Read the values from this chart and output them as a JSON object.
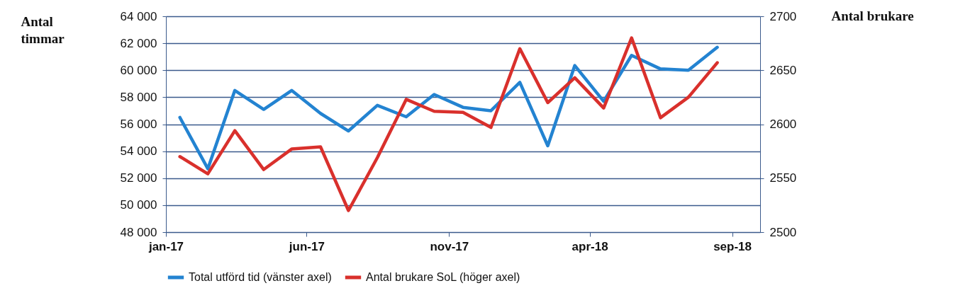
{
  "chart_data": {
    "type": "line",
    "ylabel": "Antal timmar",
    "y2label": "Antal brukare",
    "x": [
      "2017-01-16",
      "2017-02-15",
      "2017-03-16",
      "2017-04-16",
      "2017-05-16",
      "2017-06-16",
      "2017-07-16",
      "2017-08-16",
      "2017-09-16",
      "2017-10-16",
      "2017-11-16",
      "2017-12-16",
      "2018-01-16",
      "2018-02-15",
      "2018-03-16",
      "2018-04-16",
      "2018-05-16",
      "2018-06-16",
      "2018-07-16",
      "2018-08-16"
    ],
    "xlim": [
      "2017-01-01",
      "2018-10-01"
    ],
    "xticks": [
      {
        "value": "2017-01-01",
        "label": "jan-17"
      },
      {
        "value": "2017-06-01",
        "label": "jun-17"
      },
      {
        "value": "2017-11-01",
        "label": "nov-17"
      },
      {
        "value": "2018-04-01",
        "label": "apr-18"
      },
      {
        "value": "2018-09-01",
        "label": "sep-18"
      }
    ],
    "ylim": [
      48000,
      64000
    ],
    "yticks": [
      {
        "value": 48000,
        "label": "48 000"
      },
      {
        "value": 50000,
        "label": "50 000"
      },
      {
        "value": 52000,
        "label": "52 000"
      },
      {
        "value": 54000,
        "label": "54 000"
      },
      {
        "value": 56000,
        "label": "56 000"
      },
      {
        "value": 58000,
        "label": "58 000"
      },
      {
        "value": 60000,
        "label": "60 000"
      },
      {
        "value": 62000,
        "label": "62 000"
      },
      {
        "value": 64000,
        "label": "64 000"
      }
    ],
    "y2lim": [
      2500,
      2700
    ],
    "y2ticks": [
      2500,
      2550,
      2600,
      2650,
      2700
    ],
    "series": [
      {
        "name": "Total utförd tid (vänster axel)",
        "color": "#2383d1",
        "values": [
          56500,
          52700,
          58500,
          57100,
          58500,
          56800,
          55500,
          57400,
          56550,
          58200,
          57250,
          57000,
          59100,
          54400,
          60350,
          57700,
          61100,
          60100,
          60000,
          61700
        ]
      },
      {
        "name": "Antal brukare SoL (höger axel)",
        "color": "#d9302c",
        "axis": "y2",
        "values": [
          2570,
          2554,
          2594,
          2558,
          2577,
          2579,
          2520,
          2569,
          2623,
          2612,
          2611,
          2597,
          2670,
          2620,
          2643,
          2615,
          2680,
          2606,
          2625,
          2657
        ]
      }
    ],
    "grid": "y",
    "legend": "bottom"
  }
}
